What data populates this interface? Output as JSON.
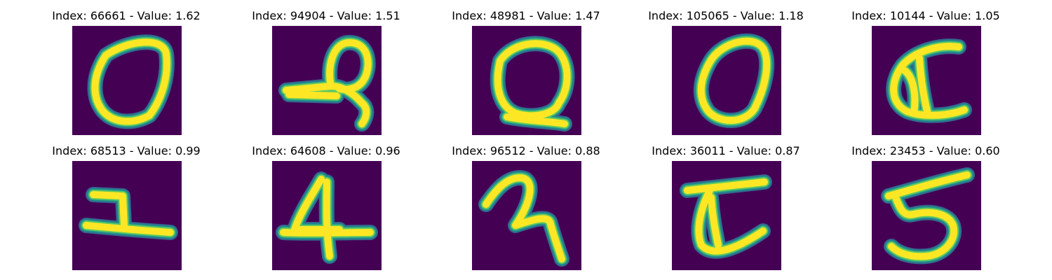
{
  "colors": {
    "background": "#440154",
    "edge_outer": "#31688e",
    "edge_mid": "#21918c",
    "edge_inner": "#5ec962",
    "stroke_core": "#fde725"
  },
  "panels": [
    {
      "title": "Index: 66661 - Value: 1.62",
      "image_label": "digit-0"
    },
    {
      "title": "Index: 94904 - Value: 1.51",
      "image_label": "digit-q"
    },
    {
      "title": "Index: 48981 - Value: 1.47",
      "image_label": "digit-q-loop"
    },
    {
      "title": "Index: 105065 - Value: 1.18",
      "image_label": "digit-0-oval"
    },
    {
      "title": "Index: 10144 - Value: 1.05",
      "image_label": "digit-c"
    },
    {
      "title": "Index: 68513 - Value: 0.99",
      "image_label": "digit-1"
    },
    {
      "title": "Index: 64608 - Value: 0.96",
      "image_label": "digit-4"
    },
    {
      "title": "Index: 96512 - Value: 0.88",
      "image_label": "digit-z"
    },
    {
      "title": "Index: 36011 - Value: 0.87",
      "image_label": "digit-c-bar"
    },
    {
      "title": "Index: 23453 - Value: 0.60",
      "image_label": "digit-5"
    }
  ]
}
